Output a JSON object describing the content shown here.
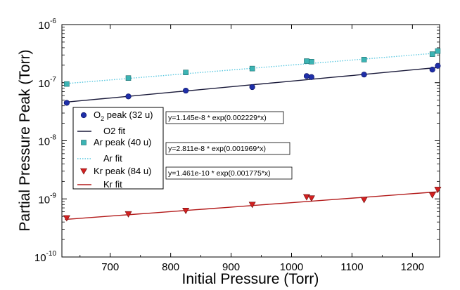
{
  "chart_data": {
    "type": "scatter",
    "xlabel": "Initial Pressure (Torr)",
    "ylabel": "Partial Pressure Peak (Torr)",
    "xlim": [
      620,
      1245
    ],
    "ylim_log10": [
      -10,
      -6
    ],
    "y_scale": "log",
    "grid": false,
    "x_ticks": [
      700,
      800,
      900,
      1000,
      1100,
      1200
    ],
    "x_tick_labels": [
      "700",
      "800",
      "900",
      "1000",
      "1100",
      "1200"
    ],
    "y_ticks_exp": [
      -10,
      -9,
      -8,
      -7,
      -6
    ],
    "y_tick_base": "10",
    "y_tick_exponents": [
      "-10",
      "-9",
      "-8",
      "-7",
      "-6"
    ],
    "legend_position": "left-middle",
    "series": [
      {
        "name": "O2 peak (32 u)",
        "legend_main": "O",
        "legend_sub": "2",
        "legend_rest": " peak (32 u)",
        "marker": "circle",
        "color": "#1f2fa8",
        "x": [
          628,
          730,
          825,
          935,
          1025,
          1033,
          1120,
          1233,
          1242
        ],
        "y": [
          4.5e-08,
          5.8e-08,
          7.3e-08,
          8.4e-08,
          1.3e-07,
          1.25e-07,
          1.38e-07,
          1.68e-07,
          1.95e-07
        ]
      },
      {
        "name": "Ar peak (40 u)",
        "legend_label": "Ar peak (40 u)",
        "marker": "square",
        "color": "#3cb4b4",
        "x": [
          628,
          730,
          825,
          935,
          1025,
          1033,
          1120,
          1233,
          1242
        ],
        "y": [
          9.5e-08,
          1.2e-07,
          1.5e-07,
          1.75e-07,
          2.35e-07,
          2.3e-07,
          2.5e-07,
          3.1e-07,
          3.5e-07
        ]
      },
      {
        "name": "Kr peak (84 u)",
        "legend_label": "Kr peak (84 u)",
        "marker": "triangle-down",
        "color": "#d42020",
        "x": [
          628,
          730,
          825,
          935,
          1025,
          1033,
          1120,
          1233,
          1242
        ],
        "y": [
          4.7e-10,
          5.5e-10,
          6.3e-10,
          8e-10,
          1.08e-09,
          1.03e-09,
          9.7e-10,
          1.17e-09,
          1.45e-09
        ]
      }
    ],
    "fits": [
      {
        "name": "O2 fit",
        "legend_label": "O2 fit",
        "a": 1.145e-08,
        "b": 0.002229,
        "color": "#1a1a3a",
        "dash": "none",
        "equation": "y=1.145e-8 * exp(0.002229*x)"
      },
      {
        "name": "Ar fit",
        "legend_label": "Ar fit",
        "a": 2.811e-08,
        "b": 0.001969,
        "color": "#5bc8e0",
        "dash": "dotted",
        "equation": "y=2.811e-8 * exp(0.001969*x)"
      },
      {
        "name": "Kr fit",
        "legend_label": "Kr fit",
        "a": 1.461e-10,
        "b": 0.001775,
        "color": "#b31b1b",
        "dash": "none",
        "equation": "y=1.461e-10 * exp(0.001775*x)"
      }
    ]
  }
}
